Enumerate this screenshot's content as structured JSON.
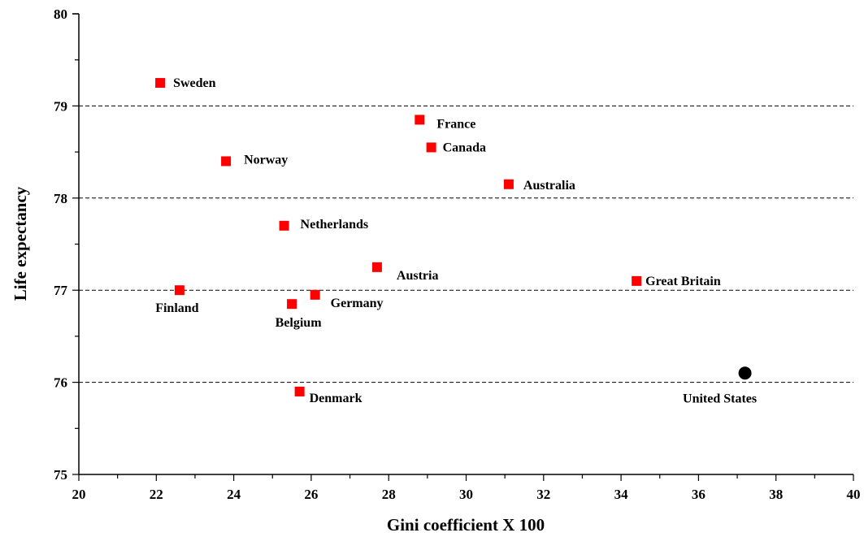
{
  "chart_data": {
    "type": "scatter",
    "xlabel": "Gini coefficient X 100",
    "ylabel": "Life expectancy",
    "xlim": [
      20,
      40
    ],
    "ylim": [
      75,
      80
    ],
    "x_ticks": [
      20,
      22,
      24,
      26,
      28,
      30,
      32,
      34,
      36,
      38,
      40
    ],
    "y_ticks": [
      75,
      76,
      77,
      78,
      79,
      80
    ],
    "grid": "horizontal-dashed",
    "legend": "none",
    "series": [
      {
        "marker": "square",
        "color": "#ff0000",
        "points": [
          {
            "label": "Sweden",
            "x": 22.1,
            "y": 79.25
          },
          {
            "label": "France",
            "x": 28.8,
            "y": 78.85
          },
          {
            "label": "Canada",
            "x": 29.1,
            "y": 78.55
          },
          {
            "label": "Norway",
            "x": 23.8,
            "y": 78.4
          },
          {
            "label": "Australia",
            "x": 31.1,
            "y": 78.15
          },
          {
            "label": "Netherlands",
            "x": 25.3,
            "y": 77.7
          },
          {
            "label": "Austria",
            "x": 27.7,
            "y": 77.25
          },
          {
            "label": "Great Britain",
            "x": 34.4,
            "y": 77.1
          },
          {
            "label": "Finland",
            "x": 22.6,
            "y": 77.0
          },
          {
            "label": "Germany",
            "x": 26.1,
            "y": 76.95
          },
          {
            "label": "Belgium",
            "x": 25.5,
            "y": 76.85
          },
          {
            "label": "Denmark",
            "x": 25.7,
            "y": 75.9
          }
        ]
      },
      {
        "marker": "circle",
        "color": "#000000",
        "points": [
          {
            "label": "United States",
            "x": 37.2,
            "y": 76.1
          }
        ]
      }
    ]
  }
}
